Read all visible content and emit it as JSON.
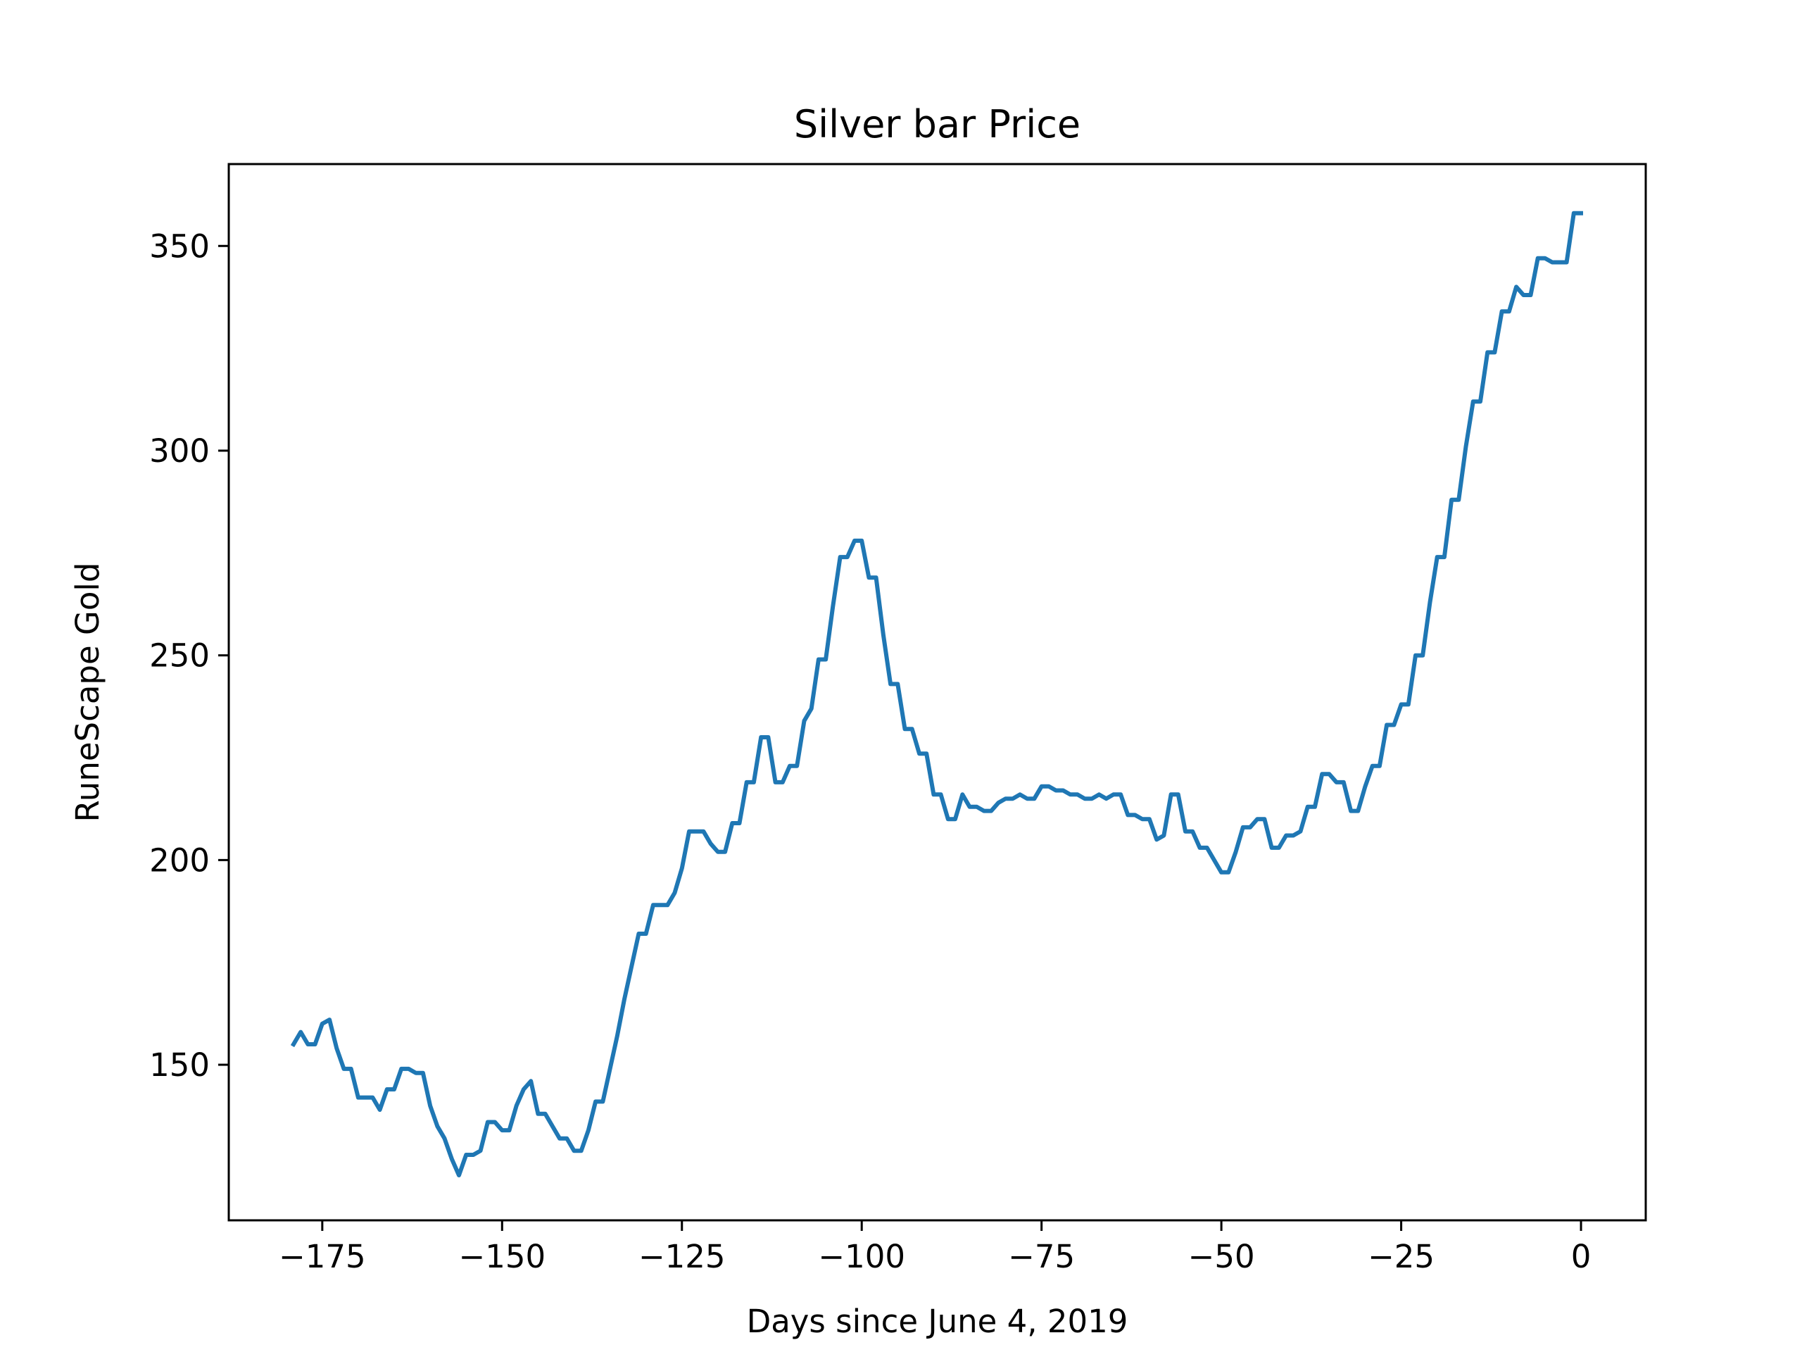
{
  "chart_data": {
    "type": "line",
    "title": "Silver bar Price",
    "xlabel": "Days since June 4, 2019",
    "ylabel": "RuneScape Gold",
    "xlim": [
      -188,
      9
    ],
    "ylim": [
      112,
      370
    ],
    "xticks": [
      -175,
      -150,
      -125,
      -100,
      -75,
      -50,
      -25,
      0
    ],
    "xtick_labels": [
      "−175",
      "−150",
      "−125",
      "−100",
      "−75",
      "−50",
      "−25",
      "0"
    ],
    "yticks": [
      150,
      200,
      250,
      300,
      350
    ],
    "ytick_labels": [
      "150",
      "200",
      "250",
      "300",
      "350"
    ],
    "grid": false,
    "legend": "none",
    "colors": {
      "line": "#1f77b4"
    },
    "series": [
      {
        "x": [
          -179,
          -178,
          -177,
          -176,
          -175,
          -174,
          -173,
          -172,
          -171,
          -170,
          -169,
          -168,
          -167,
          -166,
          -165,
          -164,
          -163,
          -162,
          -161,
          -160,
          -159,
          -158,
          -157,
          -156,
          -155,
          -154,
          -153,
          -152,
          -151,
          -150,
          -149,
          -148,
          -147,
          -146,
          -145,
          -144,
          -143,
          -142,
          -141,
          -140,
          -139,
          -138,
          -137,
          -136,
          -135,
          -134,
          -133,
          -132,
          -131,
          -130,
          -129,
          -128,
          -127,
          -126,
          -125,
          -124,
          -123,
          -122,
          -121,
          -120,
          -119,
          -118,
          -117,
          -116,
          -115,
          -114,
          -113,
          -112,
          -111,
          -110,
          -109,
          -108,
          -107,
          -106,
          -105,
          -104,
          -103,
          -102,
          -101,
          -100,
          -99,
          -98,
          -97,
          -96,
          -95,
          -94,
          -93,
          -92,
          -91,
          -90,
          -89,
          -88,
          -87,
          -86,
          -85,
          -84,
          -83,
          -82,
          -81,
          -80,
          -79,
          -78,
          -77,
          -76,
          -75,
          -74,
          -73,
          -72,
          -71,
          -70,
          -69,
          -68,
          -67,
          -66,
          -65,
          -64,
          -63,
          -62,
          -61,
          -60,
          -59,
          -58,
          -57,
          -56,
          -55,
          -54,
          -53,
          -52,
          -51,
          -50,
          -49,
          -48,
          -47,
          -46,
          -45,
          -44,
          -43,
          -42,
          -41,
          -40,
          -39,
          -38,
          -37,
          -36,
          -35,
          -34,
          -33,
          -32,
          -31,
          -30,
          -29,
          -28,
          -27,
          -26,
          -25,
          -24,
          -23,
          -22,
          -21,
          -20,
          -19,
          -18,
          -17,
          -16,
          -15,
          -14,
          -13,
          -12,
          -11,
          -10,
          -9,
          -8,
          -7,
          -6,
          -5,
          -4,
          -3,
          -2,
          -1,
          0
        ],
        "y": [
          155,
          158,
          155,
          155,
          160,
          161,
          154,
          149,
          149,
          142,
          142,
          142,
          139,
          144,
          144,
          149,
          149,
          148,
          148,
          140,
          135,
          132,
          127,
          123,
          128,
          128,
          129,
          136,
          136,
          134,
          134,
          140,
          144,
          146,
          138,
          138,
          135,
          132,
          132,
          129,
          129,
          134,
          141,
          141,
          149,
          157,
          166,
          174,
          182,
          182,
          189,
          189,
          189,
          192,
          198,
          207,
          207,
          207,
          204,
          202,
          202,
          209,
          209,
          219,
          219,
          230,
          230,
          219,
          219,
          223,
          223,
          234,
          237,
          249,
          249,
          262,
          274,
          274,
          278,
          278,
          269,
          269,
          255,
          243,
          243,
          232,
          232,
          226,
          226,
          216,
          216,
          210,
          210,
          216,
          213,
          213,
          212,
          212,
          214,
          215,
          215,
          216,
          215,
          215,
          218,
          218,
          217,
          217,
          216,
          216,
          215,
          215,
          216,
          215,
          216,
          216,
          211,
          211,
          210,
          210,
          205,
          206,
          216,
          216,
          207,
          207,
          203,
          203,
          200,
          197,
          197,
          202,
          208,
          208,
          210,
          210,
          203,
          203,
          206,
          206,
          207,
          213,
          213,
          221,
          221,
          219,
          219,
          212,
          212,
          218,
          223,
          223,
          233,
          233,
          238,
          238,
          250,
          250,
          263,
          274,
          274,
          288,
          288,
          301,
          312,
          312,
          324,
          324,
          334,
          334,
          340,
          338,
          338,
          347,
          347,
          346,
          346,
          346,
          358,
          358
        ]
      }
    ]
  }
}
